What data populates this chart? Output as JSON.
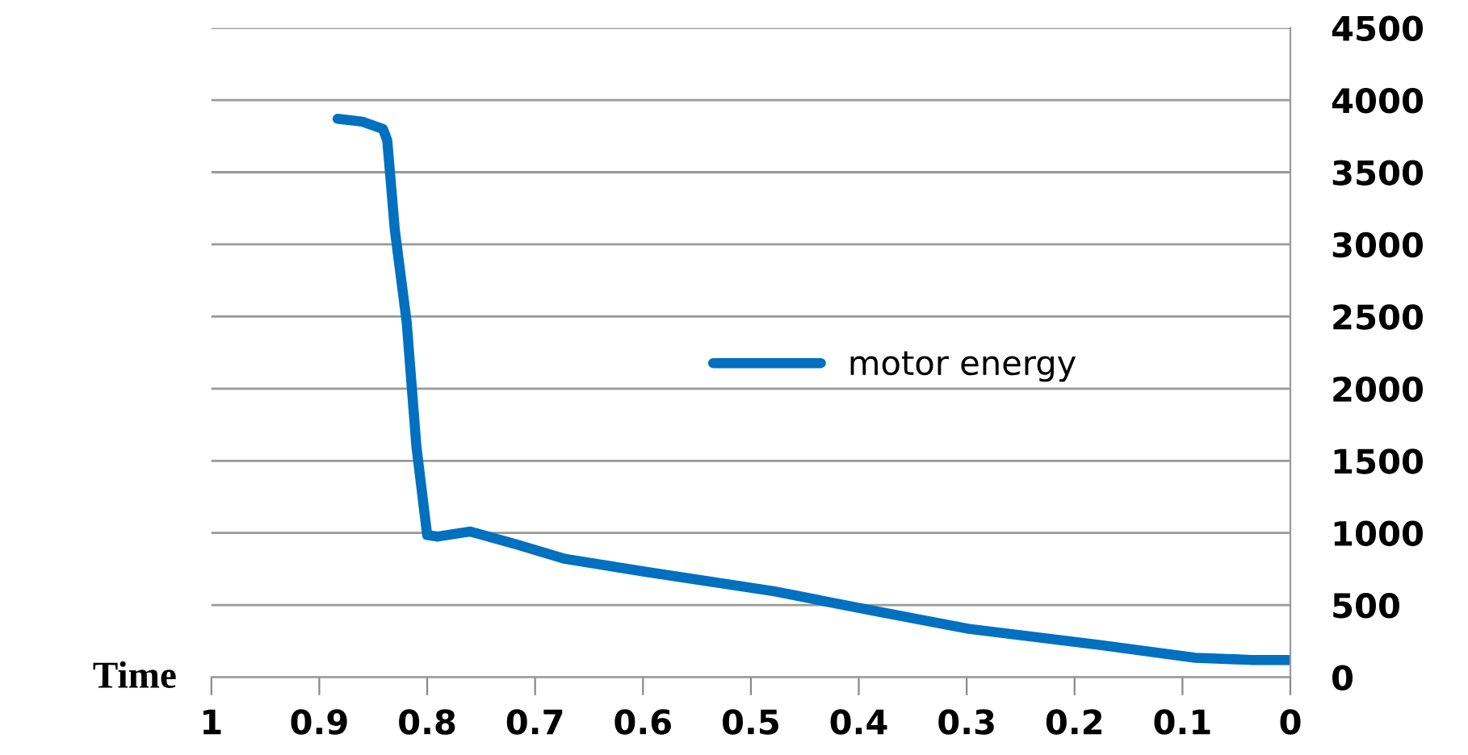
{
  "chart_data": {
    "type": "line",
    "xlabel": "Time",
    "xlim": [
      1,
      0
    ],
    "xticks": [
      1,
      0.9,
      0.8,
      0.7,
      0.6,
      0.5,
      0.4,
      0.3,
      0.2,
      0.1,
      0
    ],
    "ylim": [
      0,
      4500
    ],
    "yticks": [
      0,
      500,
      1000,
      1500,
      2000,
      2500,
      3000,
      3500,
      4000,
      4500
    ],
    "grid": "y",
    "legend": "center right",
    "marker": "none",
    "line_style": "solid",
    "series": [
      {
        "name": "motor energy",
        "color": "#0070c0",
        "x": [
          0.883,
          0.86,
          0.841,
          0.837,
          0.83,
          0.819,
          0.81,
          0.8,
          0.79,
          0.76,
          0.717,
          0.672,
          0.597,
          0.478,
          0.4,
          0.298,
          0.178,
          0.088,
          0.036,
          0
        ],
        "values": [
          3870,
          3850,
          3800,
          3720,
          3100,
          2460,
          1600,
          985,
          975,
          1010,
          920,
          820,
          730,
          595,
          480,
          335,
          225,
          135,
          120,
          120
        ]
      }
    ]
  }
}
